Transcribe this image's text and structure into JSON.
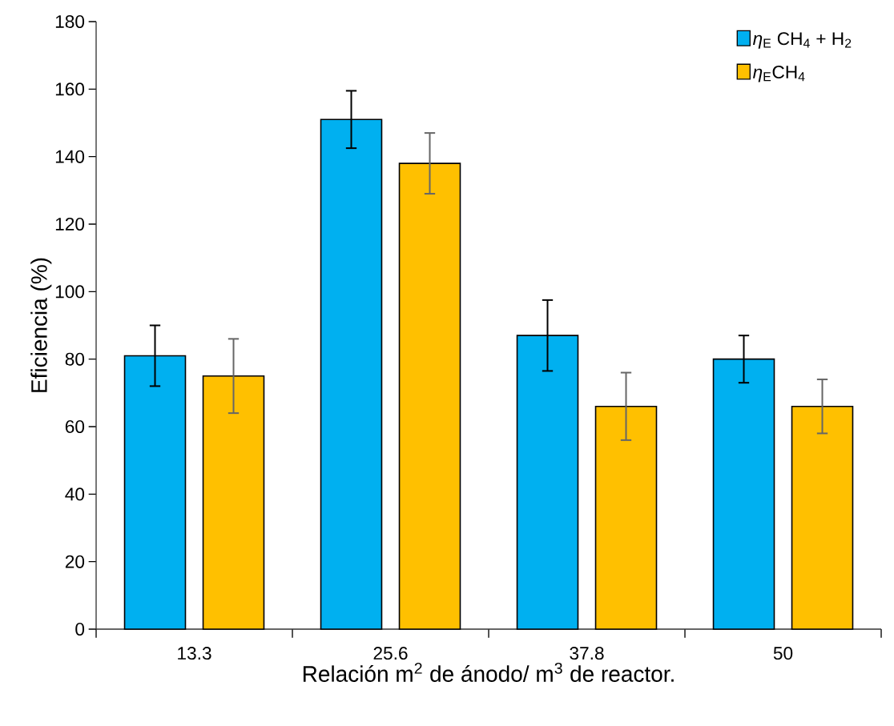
{
  "chart_data": {
    "type": "bar",
    "xlabel": "Relación m$^{2}$ de ánodo/ m$^{3}$ de reactor.",
    "ylabel": "Eficiencia (%)",
    "categories": [
      "13.3",
      "25.6",
      "37.8",
      "50"
    ],
    "series": [
      {
        "name": "*η*$_{E}$ CH$_{4}$ + H$_{2}$",
        "color": "#00b0f0",
        "values": [
          81,
          151,
          87,
          80
        ],
        "errors": [
          9,
          8.5,
          10.5,
          7
        ]
      },
      {
        "name": "*η*$_{E}$CH$_{4}$",
        "color": "#ffc000",
        "values": [
          75,
          138,
          66,
          66
        ],
        "errors": [
          11,
          9,
          10,
          8
        ]
      }
    ],
    "ylim": [
      0,
      180
    ],
    "yticks": [
      0,
      20,
      40,
      60,
      80,
      100,
      120,
      140,
      160,
      180
    ],
    "legend": "top right",
    "grid": false
  }
}
